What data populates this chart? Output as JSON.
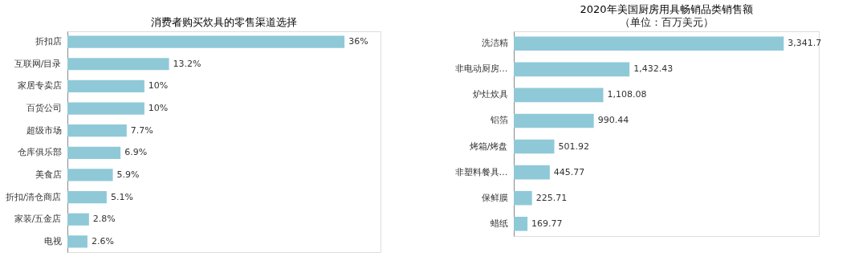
{
  "chart_data": [
    {
      "type": "bar",
      "orientation": "horizontal",
      "title": "消费者购买炊具的零售渠道选择",
      "categories": [
        "折扣店",
        "互联网/目录",
        "家居专卖店",
        "百货公司",
        "超级市场",
        "仓库俱乐部",
        "美食店",
        "折扣/清仓商店",
        "家装/五金店",
        "电视"
      ],
      "values": [
        36,
        13.2,
        10,
        10,
        7.7,
        6.9,
        5.9,
        5.1,
        2.8,
        2.6
      ],
      "value_labels": [
        "36%",
        "13.2%",
        "10%",
        "10%",
        "7.7%",
        "6.9%",
        "5.9%",
        "5.1%",
        "2.8%",
        "2.6%"
      ],
      "color": "#8fc9d8"
    },
    {
      "type": "bar",
      "orientation": "horizontal",
      "title": "2020年美国厨房用具畅销品类销售额",
      "subtitle": "（单位：百万美元）",
      "categories": [
        "洗洁精",
        "非电动厨房…",
        "炉灶炊具",
        "铝箔",
        "烤箱/烤盘",
        "非塑料餐具…",
        "保鲜膜",
        "蜡纸"
      ],
      "values": [
        3341.7,
        1432.43,
        1108.08,
        990.44,
        501.92,
        445.77,
        225.71,
        169.77
      ],
      "value_labels": [
        "3,341.7",
        "1,432.43",
        "1,108.08",
        "990.44",
        "501.92",
        "445.77",
        "225.71",
        "169.77"
      ],
      "color": "#8fc9d8"
    }
  ]
}
